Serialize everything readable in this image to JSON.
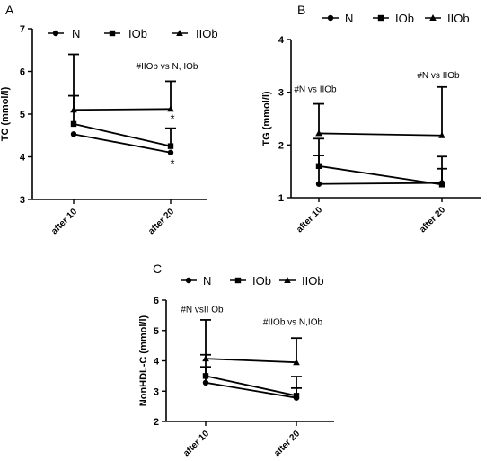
{
  "chart_data": [
    {
      "panel_label": "A",
      "type": "line",
      "ylabel": "TC (mmol/l)",
      "xlabel": "",
      "ylim": [
        3,
        7
      ],
      "yticks": [
        3,
        4,
        5,
        6,
        7
      ],
      "categories": [
        "after 10",
        "after 20"
      ],
      "legend_position": "top",
      "grid": false,
      "error_bars": "upper",
      "series": [
        {
          "name": "N",
          "marker": "circle",
          "values": [
            4.53,
            4.1
          ],
          "error_upper": [
            null,
            null
          ]
        },
        {
          "name": "IOb",
          "marker": "square",
          "values": [
            4.77,
            4.25
          ],
          "error_upper": [
            5.43,
            4.67
          ]
        },
        {
          "name": "IIOb",
          "marker": "triangle",
          "values": [
            5.1,
            5.12
          ],
          "error_upper": [
            6.4,
            5.77
          ]
        }
      ],
      "annotations": [
        {
          "text": "#IIOb vs N, IOb",
          "category": "after 20",
          "y": 6.05
        },
        {
          "text": "*",
          "category": "after 20",
          "y": 4.8
        },
        {
          "text": "*",
          "category": "after 20",
          "y": 3.75
        }
      ]
    },
    {
      "panel_label": "B",
      "type": "line",
      "ylabel": "TG (mmol/l)",
      "xlabel": "",
      "ylim": [
        1,
        4
      ],
      "yticks": [
        1,
        2,
        3,
        4
      ],
      "categories": [
        "after 10",
        "after 20"
      ],
      "legend_position": "top",
      "grid": false,
      "error_bars": "upper",
      "series": [
        {
          "name": "N",
          "marker": "circle",
          "values": [
            1.26,
            1.28
          ],
          "error_upper": [
            1.8,
            1.55
          ]
        },
        {
          "name": "IOb",
          "marker": "square",
          "values": [
            1.6,
            1.25
          ],
          "error_upper": [
            2.12,
            1.78
          ]
        },
        {
          "name": "IIOb",
          "marker": "triangle",
          "values": [
            2.22,
            2.18
          ],
          "error_upper": [
            2.78,
            3.1
          ]
        }
      ],
      "annotations": [
        {
          "text": "#N vs IIOb",
          "category": "after 10",
          "y": 3.0
        },
        {
          "text": "#N vs IIOb",
          "category": "after 20",
          "y": 3.27
        }
      ]
    },
    {
      "panel_label": "C",
      "type": "line",
      "ylabel": "NonHDL-C (mmol/l)",
      "xlabel": "",
      "ylim": [
        2,
        6
      ],
      "yticks": [
        2,
        3,
        4,
        5,
        6
      ],
      "categories": [
        "after 10",
        "after 20"
      ],
      "legend_position": "top",
      "grid": false,
      "error_bars": "upper",
      "series": [
        {
          "name": "N",
          "marker": "circle",
          "values": [
            3.28,
            2.78
          ],
          "error_upper": [
            3.8,
            3.1
          ]
        },
        {
          "name": "IOb",
          "marker": "square",
          "values": [
            3.5,
            2.85
          ],
          "error_upper": [
            4.2,
            3.48
          ]
        },
        {
          "name": "IIOb",
          "marker": "triangle",
          "values": [
            4.07,
            3.95
          ],
          "error_upper": [
            5.35,
            4.75
          ]
        }
      ],
      "annotations": [
        {
          "text": "#N vsII Ob",
          "category": "after 10",
          "y": 5.6
        },
        {
          "text": "#IIOb vs N,IOb",
          "category": "after 20",
          "y": 5.18
        }
      ]
    }
  ]
}
